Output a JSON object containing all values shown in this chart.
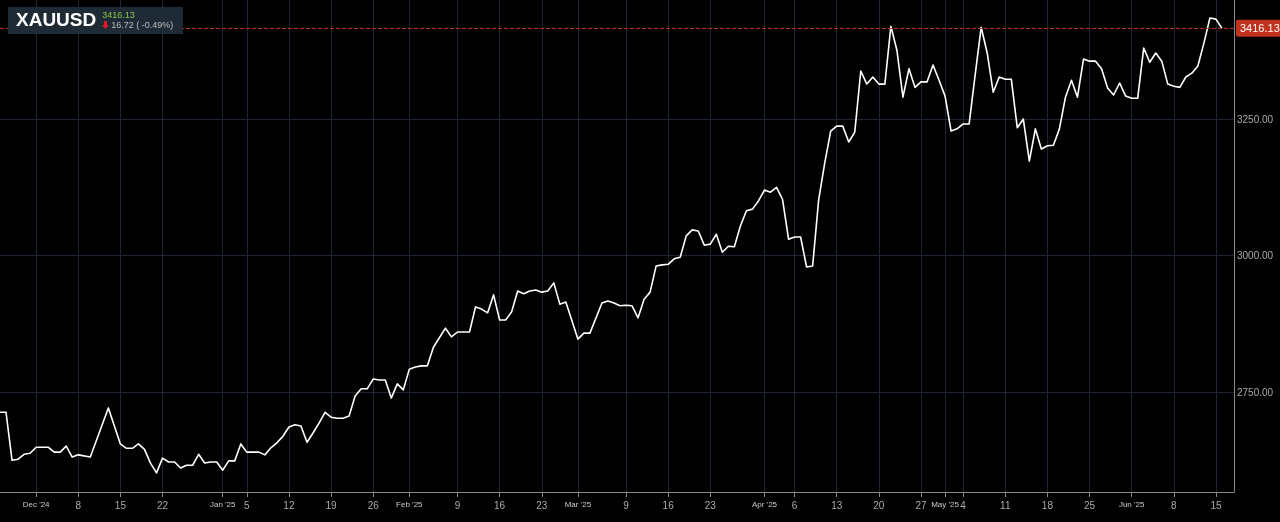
{
  "chart_data": {
    "type": "line",
    "title": "XAUUSD",
    "subtitle": "3416.13",
    "annotations": [
      "16.72 ( -0.49%)"
    ],
    "x": [
      "2024-11-25",
      "2024-11-26",
      "2024-11-27",
      "2024-11-28",
      "2024-11-29",
      "2024-11-30",
      "2024-12-01",
      "2024-12-03",
      "2024-12-04",
      "2024-12-05",
      "2024-12-06",
      "2024-12-07",
      "2024-12-08",
      "2024-12-10",
      "2024-12-13",
      "2024-12-15",
      "2024-12-16",
      "2024-12-17",
      "2024-12-18",
      "2024-12-19",
      "2024-12-20",
      "2024-12-21",
      "2024-12-22",
      "2024-12-23",
      "2024-12-24",
      "2024-12-25",
      "2024-12-26",
      "2024-12-27",
      "2024-12-28",
      "2024-12-29",
      "2024-12-30",
      "2024-12-31",
      "2025-01-01",
      "2025-01-02",
      "2025-01-03",
      "2025-01-04",
      "2025-01-05",
      "2025-01-06",
      "2025-01-07",
      "2025-01-08",
      "2025-01-09",
      "2025-01-10",
      "2025-01-11",
      "2025-01-12",
      "2025-01-13",
      "2025-01-14",
      "2025-01-15",
      "2025-01-16",
      "2025-01-17",
      "2025-01-18",
      "2025-01-19",
      "2025-01-20",
      "2025-01-21",
      "2025-01-22",
      "2025-01-23",
      "2025-01-24",
      "2025-01-25",
      "2025-01-26",
      "2025-01-27",
      "2025-01-28",
      "2025-01-29",
      "2025-01-30",
      "2025-01-31",
      "2025-02-01",
      "2025-02-02",
      "2025-02-03",
      "2025-02-04",
      "2025-02-05",
      "2025-02-07",
      "2025-02-08",
      "2025-02-09",
      "2025-02-11",
      "2025-02-12",
      "2025-02-13",
      "2025-02-14",
      "2025-02-15",
      "2025-02-16",
      "2025-02-17",
      "2025-02-18",
      "2025-02-19",
      "2025-02-20",
      "2025-02-21",
      "2025-02-22",
      "2025-02-23",
      "2025-02-24",
      "2025-02-25",
      "2025-02-26",
      "2025-02-27",
      "2025-03-01",
      "2025-03-02",
      "2025-03-03",
      "2025-03-05",
      "2025-03-06",
      "2025-03-07",
      "2025-03-08",
      "2025-03-09",
      "2025-03-10",
      "2025-03-11",
      "2025-03-12",
      "2025-03-13",
      "2025-03-14",
      "2025-03-15",
      "2025-03-16",
      "2025-03-17",
      "2025-03-18",
      "2025-03-19",
      "2025-03-20",
      "2025-03-21",
      "2025-03-22",
      "2025-03-23",
      "2025-03-24",
      "2025-03-25",
      "2025-03-26",
      "2025-03-27",
      "2025-03-28",
      "2025-03-29",
      "2025-03-30",
      "2025-03-31",
      "2025-04-01",
      "2025-04-02",
      "2025-04-03",
      "2025-04-04",
      "2025-04-05",
      "2025-04-06",
      "2025-04-07",
      "2025-04-08",
      "2025-04-09",
      "2025-04-10",
      "2025-04-11",
      "2025-04-12",
      "2025-04-13",
      "2025-04-14",
      "2025-04-15",
      "2025-04-16",
      "2025-04-17",
      "2025-04-18",
      "2025-04-19",
      "2025-04-20",
      "2025-04-21",
      "2025-04-22",
      "2025-04-23",
      "2025-04-24",
      "2025-04-25",
      "2025-04-26",
      "2025-04-27",
      "2025-04-28",
      "2025-04-29",
      "2025-04-30",
      "2025-05-01",
      "2025-05-02",
      "2025-05-03",
      "2025-05-04",
      "2025-05-05",
      "2025-05-06",
      "2025-05-07",
      "2025-05-08",
      "2025-05-09",
      "2025-05-10",
      "2025-05-11",
      "2025-05-12",
      "2025-05-13",
      "2025-05-14",
      "2025-05-15",
      "2025-05-16",
      "2025-05-17",
      "2025-05-18",
      "2025-05-19",
      "2025-05-20",
      "2025-05-21",
      "2025-05-22",
      "2025-05-23",
      "2025-05-24",
      "2025-05-25",
      "2025-05-26",
      "2025-05-27",
      "2025-05-28",
      "2025-05-29",
      "2025-05-30",
      "2025-05-31",
      "2025-06-01",
      "2025-06-02",
      "2025-06-03",
      "2025-06-04",
      "2025-06-05",
      "2025-06-06",
      "2025-06-07",
      "2025-06-08",
      "2025-06-09",
      "2025-06-10",
      "2025-06-11",
      "2025-06-12",
      "2025-06-13",
      "2025-06-14",
      "2025-06-15",
      "2025-06-16"
    ],
    "series": [
      {
        "color": "#ffffff",
        "values": [
          2713,
          2713,
          2625,
          2627,
          2636,
          2638,
          2649,
          2649,
          2640,
          2640,
          2651,
          2631,
          2635,
          2631,
          2721,
          2655,
          2647,
          2647,
          2655,
          2645,
          2620,
          2602,
          2629,
          2622,
          2622,
          2611,
          2616,
          2616,
          2636,
          2620,
          2622,
          2622,
          2607,
          2624,
          2624,
          2655,
          2640,
          2640,
          2640,
          2635,
          2648,
          2657,
          2669,
          2686,
          2690,
          2688,
          2658,
          2675,
          2693,
          2713,
          2704,
          2702,
          2702,
          2706,
          2743,
          2756,
          2756,
          2774,
          2772,
          2772,
          2739,
          2765,
          2754,
          2792,
          2796,
          2798,
          2798,
          2832,
          2867,
          2851,
          2860,
          2860,
          2906,
          2902,
          2895,
          2928,
          2882,
          2882,
          2897,
          2935,
          2930,
          2935,
          2937,
          2933,
          2935,
          2950,
          2911,
          2915,
          2847,
          2858,
          2858,
          2913,
          2917,
          2913,
          2908,
          2909,
          2908,
          2886,
          2920,
          2933,
          2981,
          2983,
          2984,
          2994,
          2997,
          3036,
          3047,
          3045,
          3019,
          3021,
          3039,
          3006,
          3017,
          3016,
          3054,
          3082,
          3085,
          3100,
          3120,
          3116,
          3125,
          3103,
          3030,
          3034,
          3034,
          2979,
          2981,
          3102,
          3169,
          3228,
          3237,
          3237,
          3208,
          3226,
          3338,
          3314,
          3327,
          3314,
          3314,
          3420,
          3376,
          3290,
          3342,
          3308,
          3318,
          3318,
          3349,
          3321,
          3292,
          3228,
          3232,
          3241,
          3241,
          3331,
          3418,
          3371,
          3299,
          3327,
          3323,
          3323,
          3234,
          3250,
          3173,
          3232,
          3195,
          3201,
          3202,
          3232,
          3290,
          3321,
          3290,
          3360,
          3356,
          3356,
          3342,
          3307,
          3294,
          3316,
          3292,
          3288,
          3288,
          3380,
          3354,
          3371,
          3356,
          3314,
          3310,
          3308,
          3327,
          3334,
          3347,
          3389,
          3435,
          3433,
          3416.13
        ]
      }
    ],
    "xlim": [
      "2024-11-25",
      "2025-06-18"
    ],
    "xticks": [
      {
        "value": "2024-12-01",
        "label": "Dec '24"
      },
      {
        "value": "2024-12-08",
        "label": "8"
      },
      {
        "value": "2024-12-15",
        "label": "15"
      },
      {
        "value": "2024-12-22",
        "label": "22"
      },
      {
        "value": "2025-01-01",
        "label": "Jan '25"
      },
      {
        "value": "2025-01-05",
        "label": "5"
      },
      {
        "value": "2025-01-12",
        "label": "12"
      },
      {
        "value": "2025-01-19",
        "label": "19"
      },
      {
        "value": "2025-01-26",
        "label": "26"
      },
      {
        "value": "2025-02-01",
        "label": "Feb '25"
      },
      {
        "value": "2025-02-09",
        "label": "9"
      },
      {
        "value": "2025-02-16",
        "label": "16"
      },
      {
        "value": "2025-02-23",
        "label": "23"
      },
      {
        "value": "2025-03-01",
        "label": "Mar '25"
      },
      {
        "value": "2025-03-09",
        "label": "9"
      },
      {
        "value": "2025-03-16",
        "label": "16"
      },
      {
        "value": "2025-03-23",
        "label": "23"
      },
      {
        "value": "2025-04-01",
        "label": "Apr '25"
      },
      {
        "value": "2025-04-06",
        "label": "6"
      },
      {
        "value": "2025-04-13",
        "label": "13"
      },
      {
        "value": "2025-04-20",
        "label": "20"
      },
      {
        "value": "2025-04-27",
        "label": "27"
      },
      {
        "value": "2025-05-01",
        "label": "May '25"
      },
      {
        "value": "2025-05-04",
        "label": "4"
      },
      {
        "value": "2025-05-11",
        "label": "11"
      },
      {
        "value": "2025-05-18",
        "label": "18"
      },
      {
        "value": "2025-05-25",
        "label": "25"
      },
      {
        "value": "2025-06-01",
        "label": "Jun '25"
      },
      {
        "value": "2025-06-08",
        "label": "8"
      },
      {
        "value": "2025-06-15",
        "label": "15"
      }
    ],
    "ylim": [
      2567,
      3468
    ],
    "yticks": [
      {
        "value": 2750,
        "label": "2750.00"
      },
      {
        "value": 3000,
        "label": "3000.00"
      },
      {
        "value": 3250,
        "label": "3250.00"
      }
    ],
    "ref_lines": [
      {
        "axis": "y",
        "value": 3416.13,
        "label": "3416.13",
        "color": "#c0321c",
        "line_style": "dashed"
      }
    ],
    "grid": true,
    "marker": "none",
    "line_style": "solid"
  }
}
